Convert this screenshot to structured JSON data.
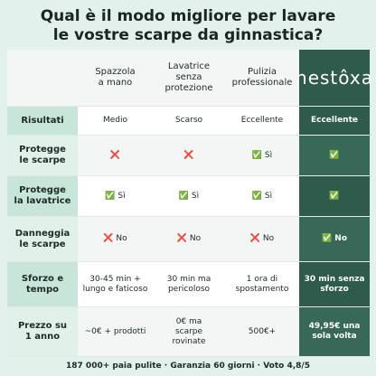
{
  "title": "Qual è il modo migliore per lavare\nle vostre scarpe da ginnastica?",
  "columns": [
    "Spazzola\na mano",
    "Lavatrice\nsenza\nprotezione",
    "Pulizia\nprofessionale",
    "nestôxa"
  ],
  "rows": [
    {
      "label": "Risultati",
      "cells": [
        "Medio",
        "Scarso",
        "Eccellente",
        "Eccellente"
      ]
    },
    {
      "label": "Protegge\nle scarpe",
      "cells": [
        "❌",
        "❌",
        "✅ Sì",
        "✅"
      ]
    },
    {
      "label": "Protegge\nla lavatrice",
      "cells": [
        "✅ Sì",
        "✅ Sì",
        "✅ Sì",
        "✅"
      ]
    },
    {
      "label": "Danneggia\nle scarpe",
      "cells": [
        "❌ No",
        "❌ No",
        "❌ No",
        "✅ No"
      ]
    },
    {
      "label": "Sforzo e\ntempo",
      "cells": [
        "30-45 min +\nlungo e faticoso",
        "30 min ma\npericoloso",
        "1 ora di\nspostamento",
        "30 min senza\nsforzo"
      ]
    },
    {
      "label": "Prezzo su\n1 anno",
      "cells": [
        "~0€ + prodotti",
        "0€ ma\nscarpe\nrovinate",
        "500€+",
        "49,95€ una\nsola volta"
      ]
    }
  ],
  "footer": "187 000+ paia pulite · Garanzia 60 giorni · Voto 4,8/5"
}
